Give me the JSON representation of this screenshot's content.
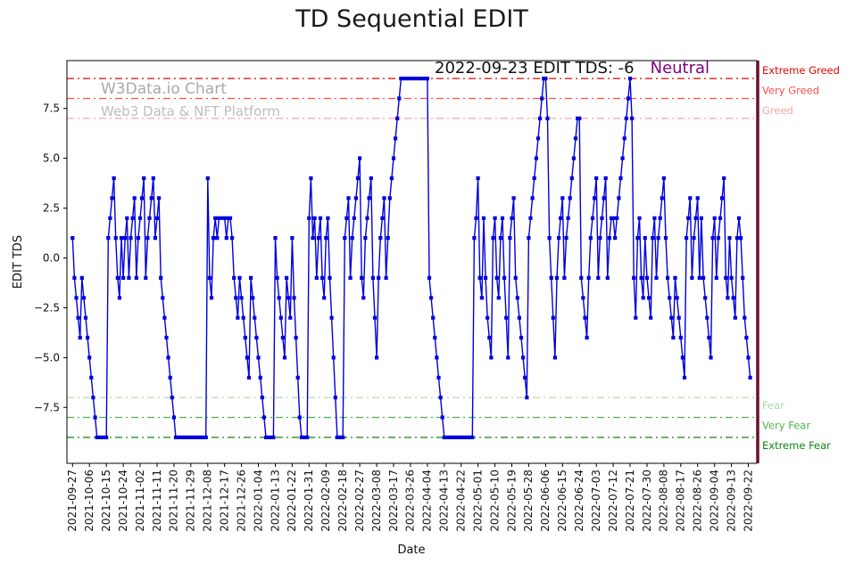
{
  "title": "TD Sequential EDIT",
  "watermark": {
    "line1": "W3Data.io Chart",
    "line2": "Web3 Data & NFT Platform"
  },
  "annotation": {
    "text": "2022-09-23 EDIT TDS: -6",
    "status": "Neutral",
    "status_color": "#800080"
  },
  "chart_data": {
    "type": "line",
    "title": "TD Sequential EDIT",
    "xlabel": "Date",
    "ylabel": "EDIT TDS",
    "ylim": [
      -10.3,
      9.9
    ],
    "y_ticks": [
      -7.5,
      -5.0,
      -2.5,
      0.0,
      2.5,
      5.0,
      7.5
    ],
    "grid": false,
    "line_color": "#0000dd",
    "marker": "square",
    "start_date": "2021-09-27",
    "end_date": "2022-09-23",
    "tick_interval_days": 9,
    "x_tick_labels": [
      "2021-09-27",
      "2021-10-06",
      "2021-10-15",
      "2021-10-24",
      "2021-11-02",
      "2021-11-11",
      "2021-11-20",
      "2021-11-29",
      "2021-12-08",
      "2021-12-17",
      "2021-12-26",
      "2022-01-04",
      "2022-01-13",
      "2022-01-22",
      "2022-01-31",
      "2022-02-09",
      "2022-02-18",
      "2022-02-27",
      "2022-03-08",
      "2022-03-17",
      "2022-03-26",
      "2022-04-04",
      "2022-04-13",
      "2022-04-22",
      "2022-05-01",
      "2022-05-10",
      "2022-05-19",
      "2022-05-28",
      "2022-06-06",
      "2022-06-15",
      "2022-06-24",
      "2022-07-03",
      "2022-07-12",
      "2022-07-21",
      "2022-07-30",
      "2022-08-08",
      "2022-08-17",
      "2022-08-26",
      "2022-09-04",
      "2022-09-13",
      "2022-09-22"
    ],
    "values": [
      1,
      -1,
      -2,
      -3,
      -4,
      -1,
      -2,
      -3,
      -4,
      -5,
      -6,
      -7,
      -8,
      -9,
      -9,
      -9,
      -9,
      -9,
      -9,
      1,
      2,
      3,
      4,
      1,
      -1,
      -2,
      1,
      -1,
      1,
      2,
      -1,
      1,
      2,
      3,
      -1,
      1,
      2,
      3,
      4,
      -1,
      1,
      2,
      3,
      4,
      1,
      2,
      3,
      -1,
      -2,
      -3,
      -4,
      -5,
      -6,
      -7,
      -8,
      -9,
      -9,
      -9,
      -9,
      -9,
      -9,
      -9,
      -9,
      -9,
      -9,
      -9,
      -9,
      -9,
      -9,
      -9,
      -9,
      -9,
      4,
      -1,
      -2,
      1,
      2,
      1,
      2,
      2,
      2,
      2,
      1,
      2,
      2,
      1,
      -1,
      -2,
      -3,
      -1,
      -2,
      -3,
      -4,
      -5,
      -6,
      -1,
      -2,
      -3,
      -4,
      -5,
      -6,
      -7,
      -8,
      -9,
      -9,
      -9,
      -9,
      -9,
      1,
      -1,
      -2,
      -3,
      -4,
      -5,
      -1,
      -2,
      -3,
      1,
      -2,
      -4,
      -6,
      -8,
      -9,
      -9,
      -9,
      -9,
      2,
      4,
      1,
      2,
      -1,
      1,
      2,
      -1,
      -2,
      1,
      2,
      -1,
      -3,
      -5,
      -7,
      -9,
      -9,
      -9,
      -9,
      1,
      2,
      3,
      -1,
      1,
      2,
      3,
      4,
      5,
      -1,
      -2,
      1,
      2,
      3,
      4,
      -1,
      -3,
      -5,
      -1,
      1,
      2,
      3,
      -1,
      1,
      3,
      4,
      5,
      6,
      7,
      8,
      9,
      9,
      9,
      9,
      9,
      9,
      9,
      9,
      9,
      9,
      9,
      9,
      9,
      9,
      9,
      -1,
      -2,
      -3,
      -4,
      -5,
      -6,
      -7,
      -8,
      -9,
      -9,
      -9,
      -9,
      -9,
      -9,
      -9,
      -9,
      -9,
      -9,
      -9,
      -9,
      -9,
      -9,
      -9,
      -9,
      1,
      2,
      4,
      -1,
      -2,
      2,
      -1,
      -3,
      -4,
      -5,
      1,
      2,
      -1,
      -2,
      1,
      2,
      -1,
      -3,
      -5,
      1,
      2,
      3,
      -1,
      -2,
      -3,
      -4,
      -5,
      -6,
      -7,
      1,
      2,
      3,
      4,
      5,
      6,
      7,
      8,
      9,
      9,
      7,
      1,
      -1,
      -3,
      -5,
      -1,
      1,
      2,
      3,
      -1,
      1,
      2,
      3,
      4,
      5,
      6,
      7,
      7,
      -1,
      -2,
      -3,
      -4,
      -1,
      1,
      2,
      3,
      4,
      -1,
      1,
      2,
      3,
      4,
      -1,
      1,
      2,
      2,
      1,
      2,
      3,
      4,
      5,
      6,
      7,
      8,
      9,
      7,
      -1,
      -3,
      1,
      2,
      -1,
      -2,
      1,
      -1,
      -2,
      -3,
      1,
      2,
      -1,
      1,
      2,
      3,
      4,
      1,
      -1,
      -2,
      -3,
      -4,
      -1,
      -2,
      -3,
      -4,
      -5,
      -6,
      1,
      2,
      3,
      -1,
      1,
      2,
      3,
      -1,
      2,
      -1,
      -2,
      -3,
      -4,
      -5,
      1,
      2,
      -1,
      1,
      2,
      3,
      4,
      -1,
      -2,
      1,
      -1,
      -2,
      -3,
      1,
      2,
      1,
      -1,
      -3,
      -4,
      -5,
      -6
    ],
    "thresholds": [
      {
        "y": 9,
        "label": "Extreme Greed",
        "color": "#e10600"
      },
      {
        "y": 8,
        "label": "Very Greed",
        "color": "#ff4d4d"
      },
      {
        "y": 7,
        "label": "Greed",
        "color": "#ffa3a3"
      },
      {
        "y": -7,
        "label": "Fear",
        "color": "#a9d9a9"
      },
      {
        "y": -8,
        "label": "Very Fear",
        "color": "#4db34d"
      },
      {
        "y": -9,
        "label": "Extreme Fear",
        "color": "#0a8a0a"
      }
    ],
    "current_marker_color": "#6b0f2a",
    "legend_position": "right-outside"
  }
}
